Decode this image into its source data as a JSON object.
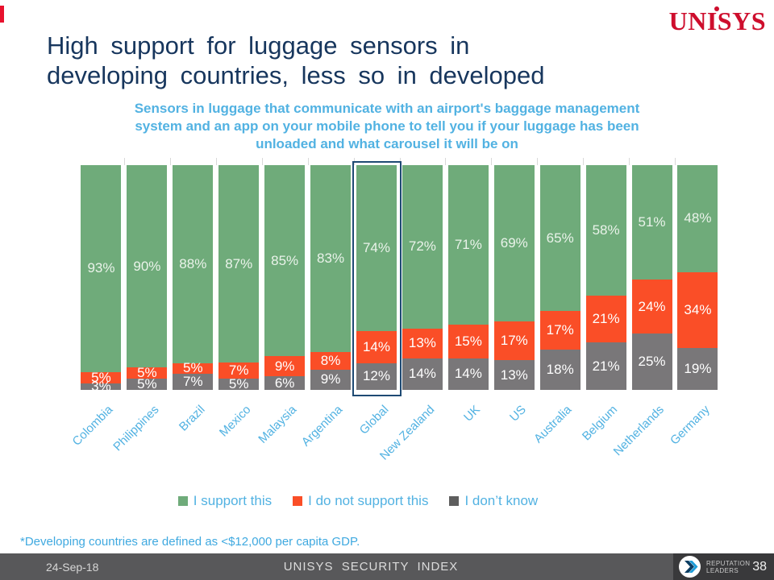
{
  "accent_color": "#E8112D",
  "brand": {
    "logo_text": "UNISYS",
    "logo_color": "#CE0E2D"
  },
  "header": {
    "title_lines": [
      "High support for luggage sensors in",
      "developing countries, less so in developed"
    ],
    "title_color": "#17365D",
    "subtitle_lines": [
      "Sensors in luggage that communicate with an airport's baggage management",
      "system and an app on your mobile phone to tell you if your luggage has been",
      "unloaded and what carousel it will be on"
    ],
    "subtitle_color": "#52B2E2"
  },
  "chart_data": {
    "type": "bar",
    "stacked": true,
    "percent_stacked": true,
    "categories": [
      "Colombia",
      "Philippines",
      "Brazil",
      "Mexico",
      "Malaysia",
      "Argentina",
      "Global",
      "New Zealand",
      "UK",
      "US",
      "Australia",
      "Belgium",
      "Netherlands",
      "Germany"
    ],
    "series": [
      {
        "name": "I support this",
        "color": "#6FAB7A",
        "values": [
          93,
          90,
          88,
          87,
          85,
          83,
          74,
          72,
          71,
          69,
          65,
          58,
          51,
          48
        ]
      },
      {
        "name": "I do not support this",
        "color": "#FA4E27",
        "values": [
          5,
          5,
          5,
          7,
          9,
          8,
          14,
          13,
          15,
          17,
          17,
          21,
          24,
          34
        ]
      },
      {
        "name": "I don’t know",
        "color": "#797779",
        "legend_color": "#5E5E5E",
        "values": [
          3,
          5,
          7,
          5,
          6,
          9,
          12,
          14,
          14,
          13,
          18,
          21,
          25,
          19
        ]
      }
    ],
    "value_label_suffix": "%",
    "highlighted_category": "Global",
    "highlight_border_color": "#1E4A73",
    "legend_position": "bottom",
    "category_label_rotation": -45,
    "ylim": [
      0,
      100
    ]
  },
  "footnote": "*Developing countries are defined as <$12,000 per capita GDP.",
  "footer": {
    "date": "24-Sep-18",
    "center_title": "UNISYS SECURITY INDEX",
    "page_number": "38",
    "reputation_line1": "REPUTATION",
    "reputation_line2": "LEADERS"
  }
}
